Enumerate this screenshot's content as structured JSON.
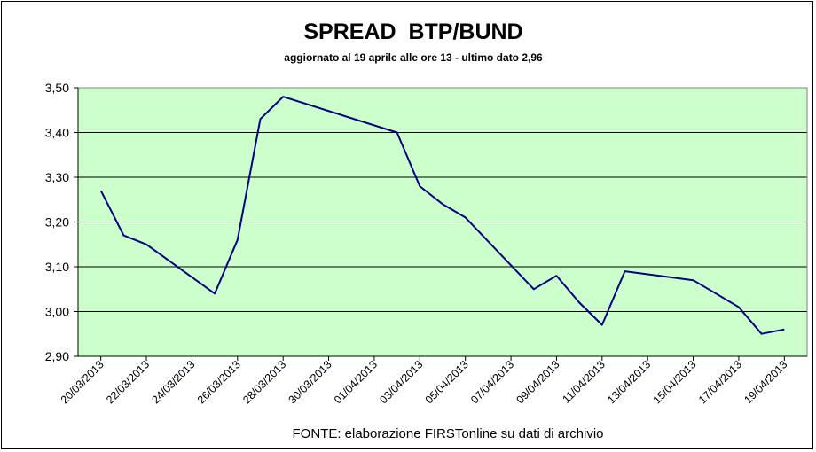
{
  "chart_data": {
    "type": "line",
    "title": "SPREAD  BTP/BUND",
    "subtitle": "aggiornato al 19 aprile alle ore 13 - ultimo dato 2,96",
    "source": "FONTE: elaborazione FIRSTonline su dati di archivio",
    "xlabel": "",
    "ylabel": "",
    "ylim": [
      2.9,
      3.5
    ],
    "yticks": [
      "2,90",
      "3,00",
      "3,10",
      "3,20",
      "3,30",
      "3,40",
      "3,50"
    ],
    "xticks": [
      "20/03/2013",
      "22/03/2013",
      "24/03/2013",
      "26/03/2013",
      "28/03/2013",
      "30/03/2013",
      "01/04/2013",
      "03/04/2013",
      "05/04/2013",
      "07/04/2013",
      "09/04/2013",
      "11/04/2013",
      "13/04/2013",
      "15/04/2013",
      "17/04/2013",
      "19/04/2013"
    ],
    "x": [
      "2013-03-20",
      "2013-03-21",
      "2013-03-22",
      "2013-03-25",
      "2013-03-26",
      "2013-03-27",
      "2013-03-28",
      "2013-04-02",
      "2013-04-03",
      "2013-04-04",
      "2013-04-05",
      "2013-04-08",
      "2013-04-09",
      "2013-04-10",
      "2013-04-11",
      "2013-04-12",
      "2013-04-15",
      "2013-04-16",
      "2013-04-17",
      "2013-04-18",
      "2013-04-19"
    ],
    "series": [
      {
        "values": [
          3.27,
          3.17,
          3.15,
          3.04,
          3.16,
          3.43,
          3.48,
          3.4,
          3.28,
          3.24,
          3.21,
          3.05,
          3.08,
          3.02,
          2.97,
          3.09,
          3.07,
          3.04,
          3.01,
          2.95,
          2.96
        ],
        "color": "#00007f"
      }
    ],
    "plot_background": "#ccffcc",
    "grid": true,
    "legend": "none"
  }
}
